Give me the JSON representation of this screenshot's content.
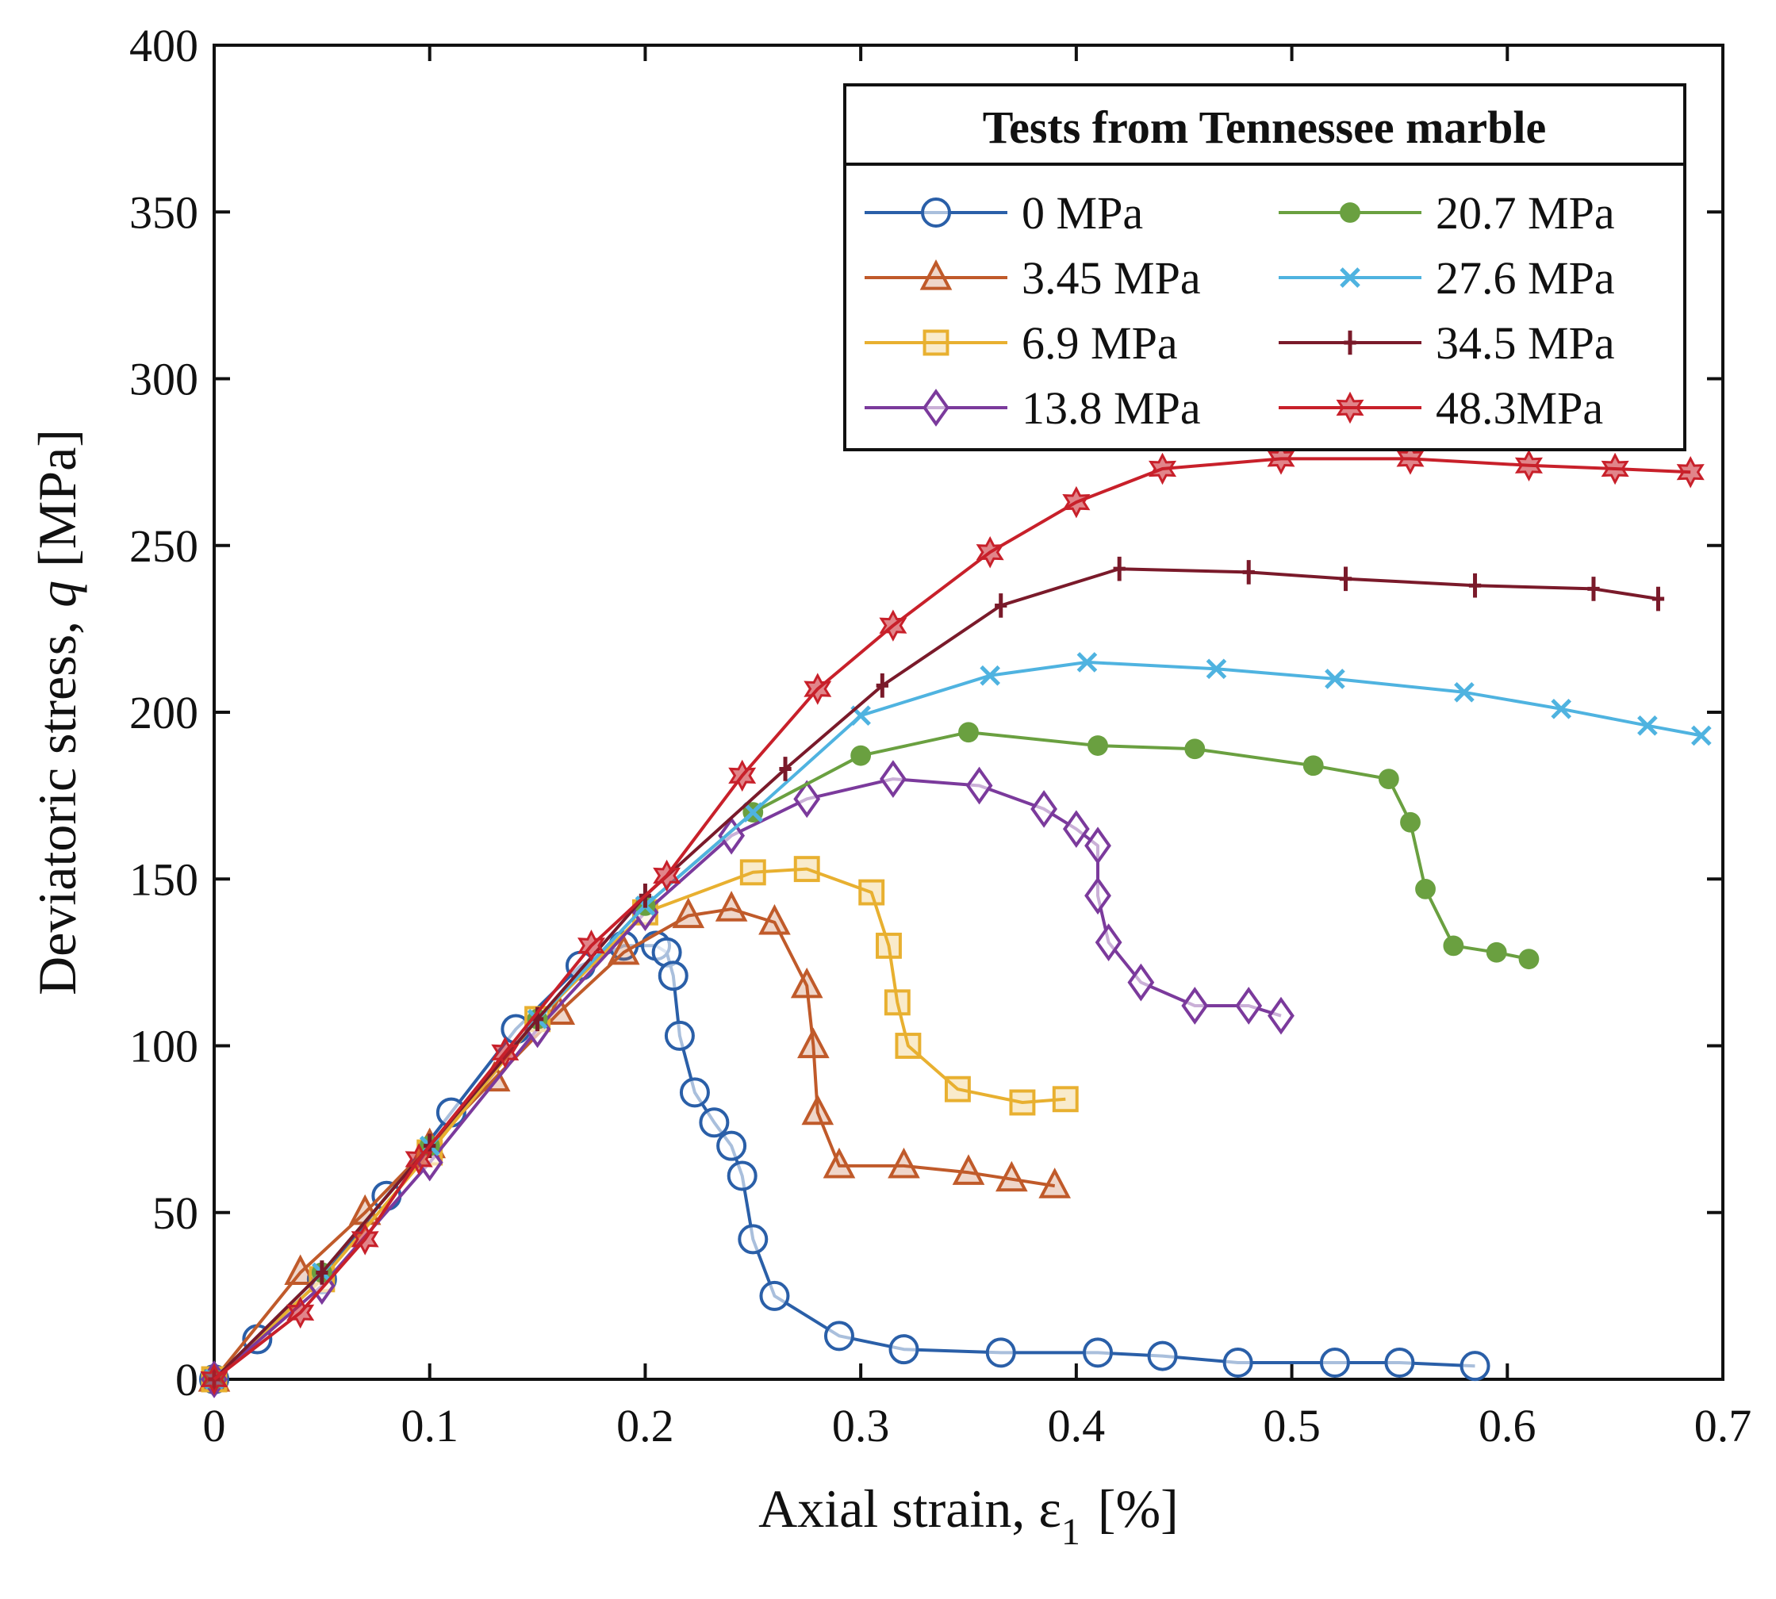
{
  "chart_data": {
    "type": "line",
    "title": "",
    "xlabel": "Axial strain, ε",
    "xlabel_subscript": "1",
    "xlabel_unit": "[%]",
    "ylabel": "Deviatoric stress, q [MPa]",
    "ylabel_prefix": "Deviatoric stress, ",
    "ylabel_var": "q",
    "ylabel_unit": " [MPa]",
    "xlim": [
      0,
      0.7
    ],
    "ylim": [
      0,
      400
    ],
    "xticks": [
      "0",
      "0.1",
      "0.2",
      "0.3",
      "0.4",
      "0.5",
      "0.6",
      "0.7"
    ],
    "xtick_values": [
      0,
      0.1,
      0.2,
      0.3,
      0.4,
      0.5,
      0.6,
      0.7
    ],
    "yticks": [
      "0",
      "50",
      "100",
      "150",
      "200",
      "250",
      "300",
      "350",
      "400"
    ],
    "ytick_values": [
      0,
      50,
      100,
      150,
      200,
      250,
      300,
      350,
      400
    ],
    "grid": false,
    "legend": {
      "title": "Tests from Tennessee marble",
      "placement": "top-right",
      "columns": 2
    },
    "series": [
      {
        "name": "0 MPa",
        "color": "#2a5fa8",
        "marker": "circle",
        "x": [
          0,
          0.02,
          0.05,
          0.08,
          0.11,
          0.14,
          0.17,
          0.19,
          0.205,
          0.21,
          0.213,
          0.216,
          0.223,
          0.232,
          0.24,
          0.245,
          0.25,
          0.26,
          0.29,
          0.32,
          0.365,
          0.41,
          0.44,
          0.475,
          0.52,
          0.55,
          0.585
        ],
        "y": [
          0,
          12,
          30,
          55,
          80,
          105,
          124,
          130,
          130,
          128,
          121,
          103,
          86,
          77,
          70,
          61,
          42,
          25,
          13,
          9,
          8,
          8,
          7,
          5,
          5,
          5,
          4
        ]
      },
      {
        "name": "3.45 MPa",
        "color": "#c05a2a",
        "marker": "triangle",
        "x": [
          0,
          0.04,
          0.07,
          0.1,
          0.13,
          0.16,
          0.19,
          0.22,
          0.24,
          0.26,
          0.275,
          0.278,
          0.28,
          0.29,
          0.32,
          0.35,
          0.37,
          0.39
        ],
        "y": [
          0,
          32,
          50,
          70,
          90,
          110,
          128,
          139,
          141,
          137,
          118,
          100,
          80,
          64,
          64,
          62,
          60,
          58
        ]
      },
      {
        "name": "6.9 MPa",
        "color": "#e8b030",
        "marker": "square",
        "x": [
          0,
          0.05,
          0.1,
          0.15,
          0.2,
          0.25,
          0.275,
          0.305,
          0.313,
          0.317,
          0.322,
          0.345,
          0.375,
          0.395
        ],
        "y": [
          0,
          30,
          68,
          108,
          140,
          152,
          153,
          146,
          130,
          113,
          100,
          87,
          83,
          84
        ]
      },
      {
        "name": "13.8 MPa",
        "color": "#7b3a9c",
        "marker": "diamond",
        "x": [
          0,
          0.05,
          0.1,
          0.15,
          0.2,
          0.24,
          0.275,
          0.315,
          0.355,
          0.385,
          0.4,
          0.41,
          0.41,
          0.415,
          0.43,
          0.455,
          0.48,
          0.495
        ],
        "y": [
          0,
          28,
          65,
          105,
          140,
          163,
          174,
          180,
          178,
          171,
          165,
          160,
          145,
          131,
          119,
          112,
          112,
          109
        ]
      },
      {
        "name": "20.7 MPa",
        "color": "#6aa040",
        "marker": "dot",
        "x": [
          0,
          0.05,
          0.1,
          0.15,
          0.2,
          0.25,
          0.3,
          0.35,
          0.41,
          0.455,
          0.51,
          0.545,
          0.555,
          0.562,
          0.575,
          0.595,
          0.61
        ],
        "y": [
          0,
          32,
          70,
          108,
          142,
          170,
          187,
          194,
          190,
          189,
          184,
          180,
          167,
          147,
          130,
          128,
          126
        ]
      },
      {
        "name": "27.6 MPa",
        "color": "#4fb3e0",
        "marker": "x",
        "x": [
          0,
          0.05,
          0.1,
          0.15,
          0.2,
          0.25,
          0.3,
          0.36,
          0.405,
          0.465,
          0.52,
          0.58,
          0.625,
          0.665,
          0.69
        ],
        "y": [
          0,
          32,
          70,
          108,
          142,
          170,
          199,
          211,
          215,
          213,
          210,
          206,
          201,
          196,
          193
        ]
      },
      {
        "name": "34.5 MPa",
        "color": "#7a1a2a",
        "marker": "plus",
        "x": [
          0,
          0.05,
          0.1,
          0.15,
          0.2,
          0.265,
          0.31,
          0.365,
          0.42,
          0.48,
          0.525,
          0.585,
          0.64,
          0.67
        ],
        "y": [
          0,
          32,
          70,
          108,
          145,
          183,
          208,
          232,
          243,
          242,
          240,
          238,
          237,
          234
        ]
      },
      {
        "name": "48.3MPa",
        "color": "#c8202a",
        "marker": "star",
        "x": [
          0,
          0.04,
          0.07,
          0.095,
          0.135,
          0.175,
          0.21,
          0.245,
          0.28,
          0.315,
          0.36,
          0.4,
          0.44,
          0.495,
          0.555,
          0.61,
          0.65,
          0.685
        ],
        "y": [
          0,
          20,
          42,
          66,
          98,
          130,
          151,
          181,
          207,
          226,
          248,
          263,
          273,
          276,
          276,
          274,
          273,
          272
        ]
      }
    ]
  }
}
